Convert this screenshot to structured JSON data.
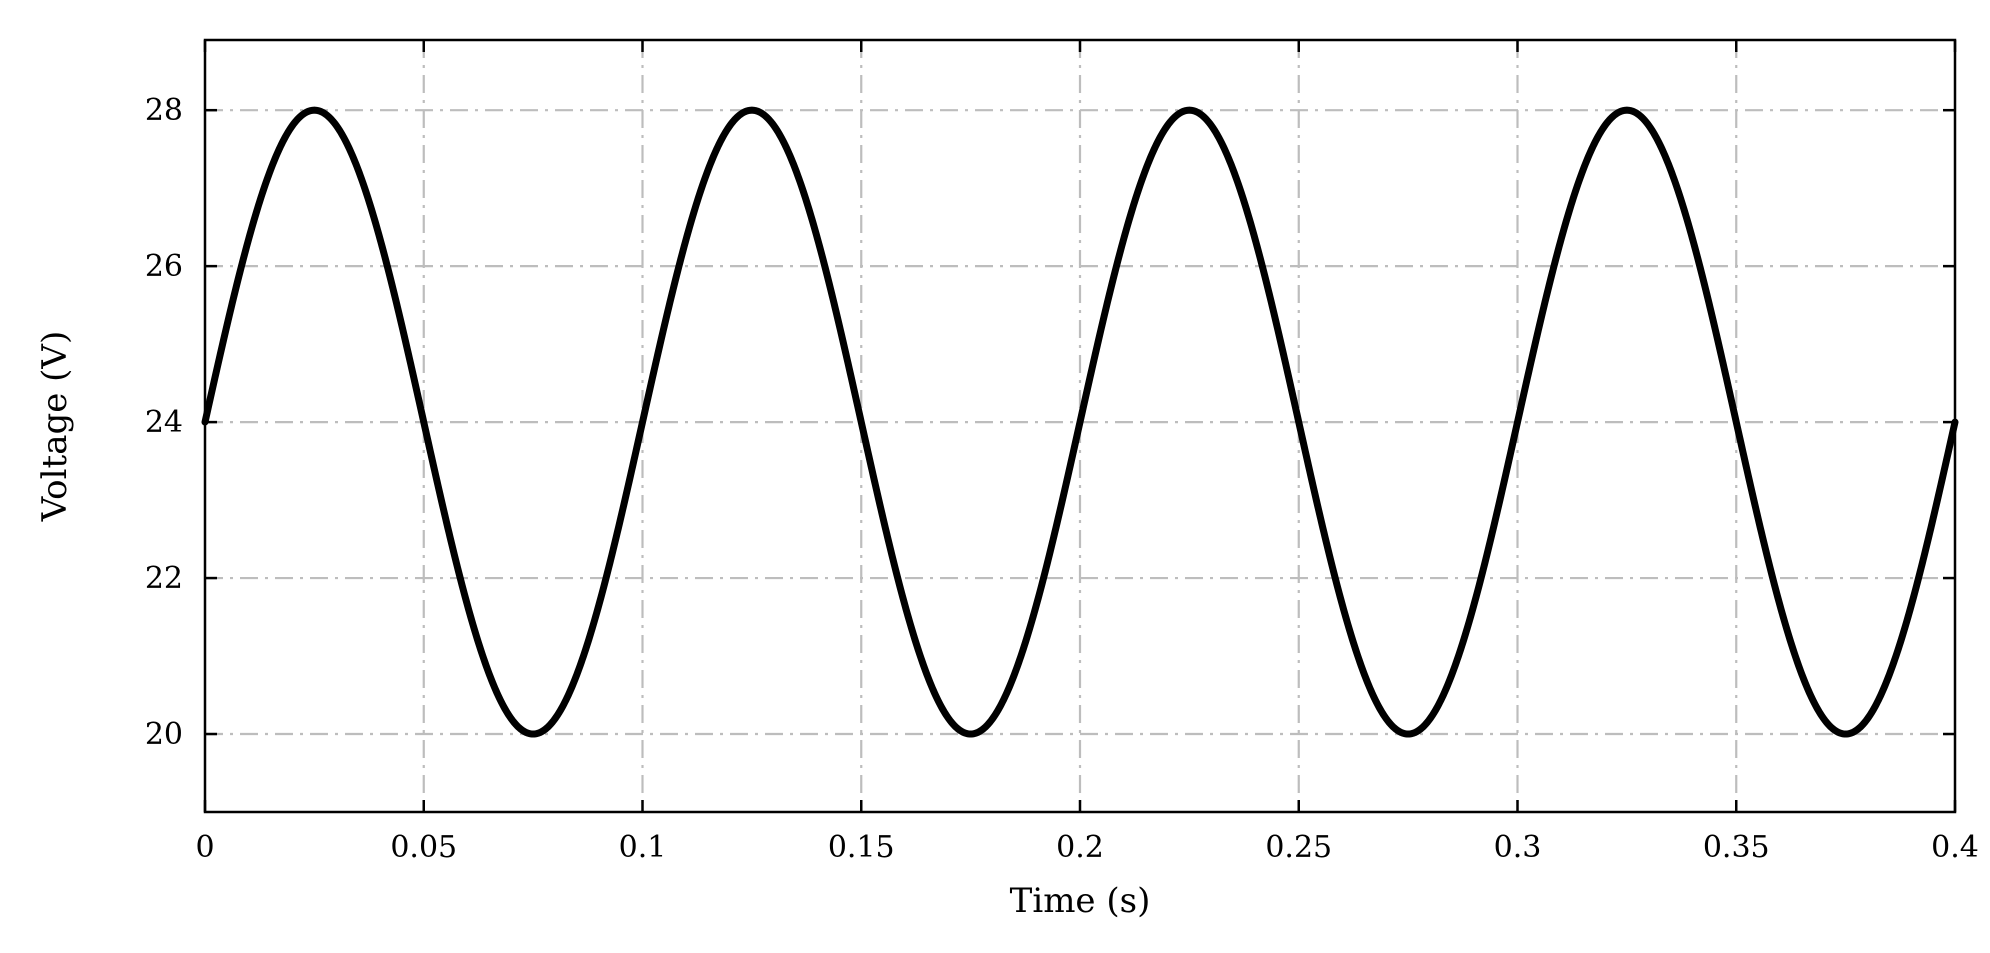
{
  "chart_data": {
    "type": "line",
    "title": "",
    "xlabel": "Time (s)",
    "ylabel": "Voltage (V)",
    "xlim": [
      0,
      0.4
    ],
    "ylim": [
      19,
      28.9
    ],
    "xticks": [
      0,
      0.05,
      0.1,
      0.15,
      0.2,
      0.25,
      0.3,
      0.35,
      0.4
    ],
    "xtick_labels": [
      "0",
      "0.05",
      "0.1",
      "0.15",
      "0.2",
      "0.25",
      "0.3",
      "0.35",
      "0.4"
    ],
    "yticks": [
      20,
      22,
      24,
      26,
      28
    ],
    "ytick_labels": [
      "20",
      "22",
      "24",
      "26",
      "28"
    ],
    "grid": true,
    "series": [
      {
        "function": "24 + 4*sin(2*pi*10*t)",
        "color": "#000000",
        "x": [
          0,
          0.0125,
          0.025,
          0.0375,
          0.05,
          0.0625,
          0.075,
          0.0875,
          0.1,
          0.1125,
          0.125,
          0.1375,
          0.15,
          0.1625,
          0.175,
          0.1875,
          0.2,
          0.2125,
          0.225,
          0.2375,
          0.25,
          0.2625,
          0.275,
          0.2875,
          0.3,
          0.3125,
          0.325,
          0.3375,
          0.35,
          0.3625,
          0.375,
          0.3875,
          0.4
        ],
        "y": [
          24,
          26.83,
          28,
          26.83,
          24,
          21.17,
          20,
          21.17,
          24,
          26.83,
          28,
          26.83,
          24,
          21.17,
          20,
          21.17,
          24,
          26.83,
          28,
          26.83,
          24,
          21.17,
          20,
          21.17,
          24,
          26.83,
          28,
          26.83,
          24,
          21.17,
          20,
          21.17,
          24
        ]
      }
    ]
  }
}
